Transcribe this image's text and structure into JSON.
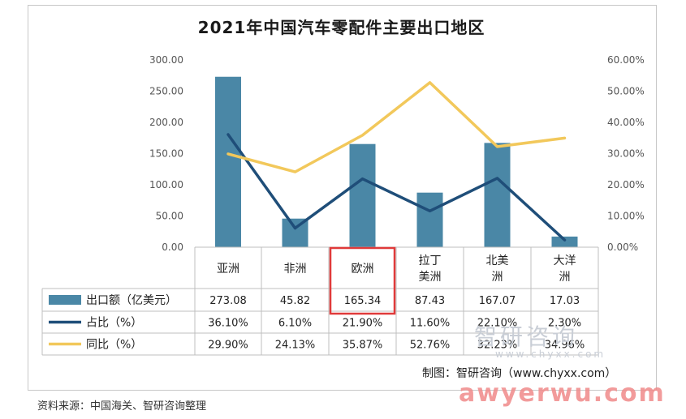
{
  "chart_data": {
    "type": "bar",
    "title": "2021年中国汽车零配件主要出口地区",
    "categories": [
      "亚洲",
      "非洲",
      "欧洲",
      "拉丁\n美洲",
      "北美\n洲",
      "大洋\n洲"
    ],
    "y_left": {
      "min": 0,
      "max": 300,
      "ticks": [
        "0.00",
        "50.00",
        "100.00",
        "150.00",
        "200.00",
        "250.00",
        "300.00"
      ]
    },
    "y_right": {
      "min": 0,
      "max": 60,
      "ticks": [
        "0.00%",
        "10.00%",
        "20.00%",
        "30.00%",
        "40.00%",
        "50.00%",
        "60.00%"
      ]
    },
    "series": [
      {
        "name": "出口额（亿美元）",
        "type": "bar",
        "axis": "left",
        "color": "#4a87a6",
        "values": [
          273.08,
          45.82,
          165.34,
          87.43,
          167.07,
          17.03
        ],
        "labels": [
          "273.08",
          "45.82",
          "165.34",
          "87.43",
          "167.07",
          "17.03"
        ]
      },
      {
        "name": "占比（%）",
        "type": "line",
        "axis": "right",
        "color": "#1f4e79",
        "values": [
          36.1,
          6.1,
          21.9,
          11.6,
          22.1,
          2.3
        ],
        "labels": [
          "36.10%",
          "6.10%",
          "21.90%",
          "11.60%",
          "22.10%",
          "2.30%"
        ]
      },
      {
        "name": "同比（%）",
        "type": "line",
        "axis": "right",
        "color": "#f2c85b",
        "values": [
          29.9,
          24.13,
          35.87,
          52.76,
          32.23,
          34.96
        ],
        "labels": [
          "29.90%",
          "24.13%",
          "35.87%",
          "52.76%",
          "32.23%",
          "34.96%"
        ]
      }
    ],
    "highlight_category": "欧洲",
    "highlight_color": "#e03a3a",
    "grid": false,
    "legend": "table-left"
  },
  "credit": "制图：智研咨询（www.chyxx.com）",
  "source": "资料来源：中国海关、智研咨询整理",
  "watermark": {
    "logo": "智研咨询",
    "url": "www.chyxx.com",
    "bottom": "awyerwu.com"
  }
}
